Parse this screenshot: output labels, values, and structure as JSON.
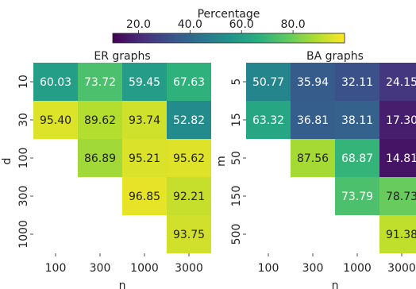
{
  "colorbar": {
    "label": "Percentage",
    "ticks": [
      "20.0",
      "40.0",
      "60.0",
      "80.0"
    ],
    "tick_values": [
      20,
      40,
      60,
      80
    ],
    "min": 10,
    "max": 100,
    "colormap": "viridis"
  },
  "chart_data": [
    {
      "type": "heatmap",
      "title": "ER graphs",
      "xlabel": "n",
      "ylabel": "d",
      "x_categories": [
        "100",
        "300",
        "1000",
        "3000"
      ],
      "y_categories": [
        "10",
        "30",
        "100",
        "300",
        "1000"
      ],
      "values": [
        [
          60.03,
          73.72,
          59.45,
          67.63
        ],
        [
          95.4,
          89.62,
          93.74,
          52.82
        ],
        [
          null,
          86.89,
          95.21,
          95.62
        ],
        [
          null,
          null,
          96.85,
          92.21
        ],
        [
          null,
          null,
          null,
          93.75
        ]
      ],
      "labels": [
        [
          "60.03",
          "73.72",
          "59.45",
          "67.63"
        ],
        [
          "95.40",
          "89.62",
          "93.74",
          "52.82"
        ],
        [
          null,
          "86.89",
          "95.21",
          "95.62"
        ],
        [
          null,
          null,
          "96.85",
          "92.21"
        ],
        [
          null,
          null,
          null,
          "93.75"
        ]
      ]
    },
    {
      "type": "heatmap",
      "title": "BA graphs",
      "xlabel": "n",
      "ylabel": "m",
      "x_categories": [
        "100",
        "300",
        "1000",
        "3000"
      ],
      "y_categories": [
        "5",
        "15",
        "50",
        "150",
        "500"
      ],
      "values": [
        [
          50.77,
          35.94,
          32.11,
          24.15
        ],
        [
          63.32,
          36.81,
          38.11,
          17.3
        ],
        [
          null,
          87.56,
          68.87,
          14.81
        ],
        [
          null,
          null,
          73.79,
          78.73
        ],
        [
          null,
          null,
          null,
          91.38
        ]
      ],
      "labels": [
        [
          "50.77",
          "35.94",
          "32.11",
          "24.15"
        ],
        [
          "63.32",
          "36.81",
          "38.11",
          "17.30"
        ],
        [
          null,
          "87.56",
          "68.87",
          "14.81"
        ],
        [
          null,
          null,
          "73.79",
          "78.73"
        ],
        [
          null,
          null,
          null,
          "91.38"
        ]
      ]
    }
  ]
}
